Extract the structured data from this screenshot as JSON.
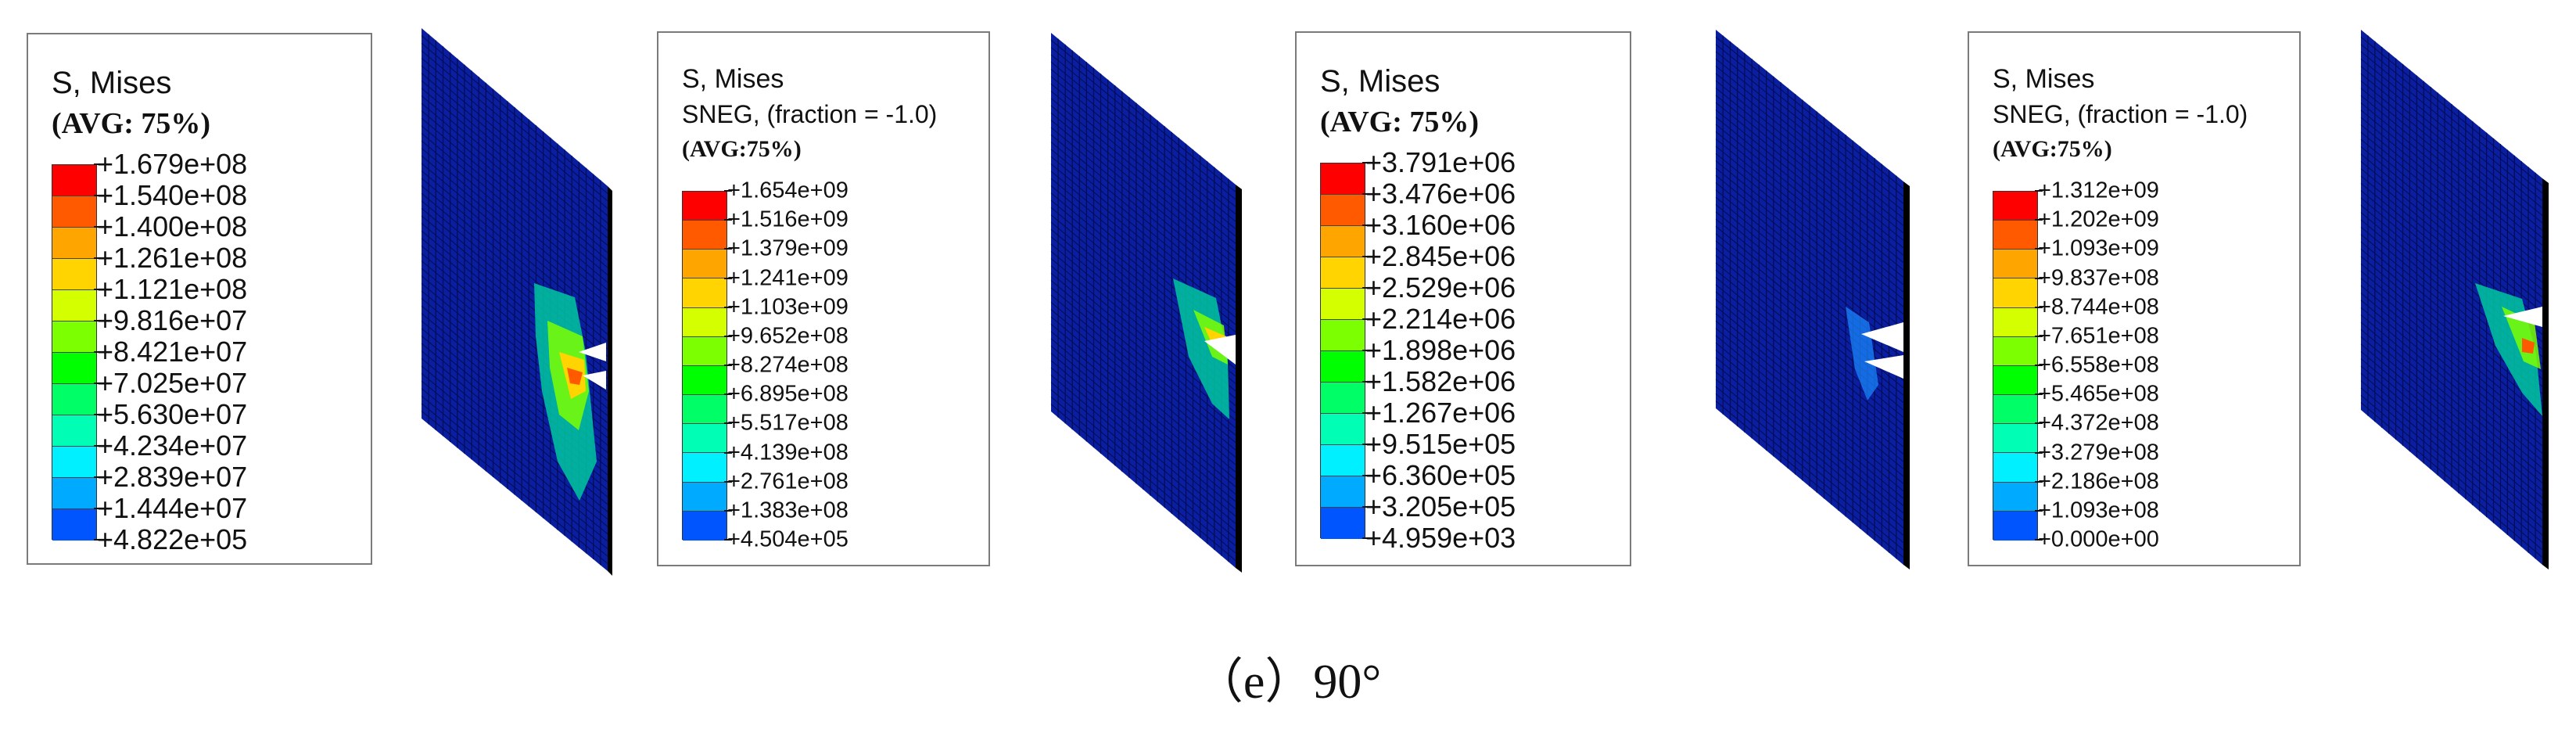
{
  "colormap": [
    "#ff0000",
    "#ff5a00",
    "#ffa500",
    "#ffd400",
    "#d4ff00",
    "#7cff00",
    "#00ff00",
    "#00ff66",
    "#00ffb4",
    "#00f0ff",
    "#00aaff",
    "#0055ff",
    "#0000ff"
  ],
  "mesh_colors": {
    "base": "#0a1ea0",
    "line": "#050b55",
    "edge": "#000000"
  },
  "panels": [
    {
      "header": [
        "S, Mises",
        "(AVG: 75%)"
      ],
      "values": [
        "+1.679e+08",
        "+1.540e+08",
        "+1.400e+08",
        "+1.261e+08",
        "+1.121e+08",
        "+9.816e+07",
        "+8.421e+07",
        "+7.025e+07",
        "+5.630e+07",
        "+4.234e+07",
        "+2.839e+07",
        "+1.444e+07",
        "+4.822e+05"
      ]
    },
    {
      "header": [
        "S, Mises",
        "SNEG, (fraction = -1.0)",
        "(AVG:75%)"
      ],
      "values": [
        "+1.654e+09",
        "+1.516e+09",
        "+1.379e+09",
        "+1.241e+09",
        "+1.103e+09",
        "+9.652e+08",
        "+8.274e+08",
        "+6.895e+08",
        "+5.517e+08",
        "+4.139e+08",
        "+2.761e+08",
        "+1.383e+08",
        "+4.504e+05"
      ]
    },
    {
      "header": [
        "S, Mises",
        "(AVG: 75%)"
      ],
      "values": [
        "+3.791e+06",
        "+3.476e+06",
        "+3.160e+06",
        "+2.845e+06",
        "+2.529e+06",
        "+2.214e+06",
        "+1.898e+06",
        "+1.582e+06",
        "+1.267e+06",
        "+9.515e+05",
        "+6.360e+05",
        "+3.205e+05",
        "+4.959e+03"
      ]
    },
    {
      "header": [
        "S, Mises",
        "SNEG, (fraction = -1.0)",
        "(AVG:75%)"
      ],
      "values": [
        "+1.312e+09",
        "+1.202e+09",
        "+1.093e+09",
        "+9.837e+08",
        "+8.744e+08",
        "+7.651e+08",
        "+6.558e+08",
        "+5.465e+08",
        "+4.372e+08",
        "+3.279e+08",
        "+2.186e+08",
        "+1.093e+08",
        "+0.000e+00"
      ]
    }
  ],
  "caption": "（e）90°"
}
